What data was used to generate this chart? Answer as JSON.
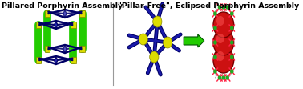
{
  "title_left": "Pillared Porphyrin Assembly",
  "title_right": "\"Pillar-Free\", Eclipsed Porphyrin Assembly",
  "bg_color": "#ffffff",
  "porphyrin_blue": "#1a1aaa",
  "porphyrin_dark": "#000066",
  "pillar_green": "#22cc00",
  "pillar_yellow": "#dddd00",
  "node_yellow": "#cccc00",
  "sphere_red": "#cc1111",
  "arrow_green": "#22cc00",
  "dot_gray": "#bbbbbb",
  "cross_pink": "#ff3355",
  "cross_green": "#33aa33",
  "title_fontsize": 6.8
}
